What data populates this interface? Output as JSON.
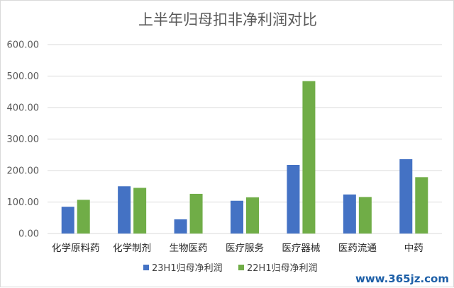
{
  "chart_data": {
    "type": "bar",
    "title": "上半年归母扣非净利润对比",
    "categories": [
      "化学原料药",
      "化学制剂",
      "生物医药",
      "医疗服务",
      "医疗器械",
      "医药流通",
      "中药"
    ],
    "series": [
      {
        "name": "23H1归母净利润",
        "color": "#4472c4",
        "values": [
          85,
          150,
          45,
          104,
          218,
          124,
          236
        ]
      },
      {
        "name": "22H1归母净利润",
        "color": "#70ad47",
        "values": [
          107,
          145,
          126,
          115,
          484,
          116,
          179
        ]
      }
    ],
    "ylim": [
      0,
      600
    ],
    "yticks": [
      "0.00",
      "100.00",
      "200.00",
      "300.00",
      "400.00",
      "500.00",
      "600.00"
    ],
    "xlabel": "",
    "ylabel": "",
    "grid": true,
    "legend_position": "bottom"
  },
  "watermark": "www.365jz.com"
}
